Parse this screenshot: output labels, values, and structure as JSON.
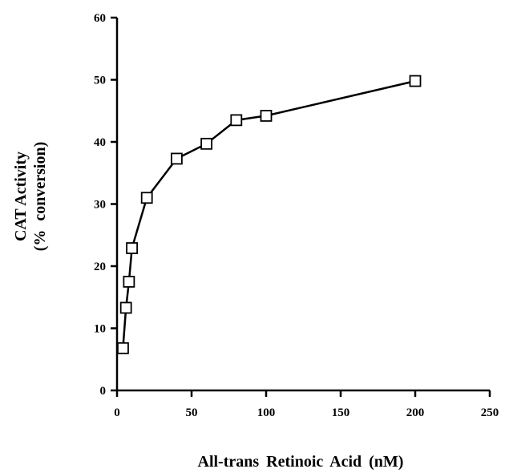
{
  "chart_data": {
    "type": "line",
    "title": "",
    "xlabel": "All-trans Retinoic Acid (nM)",
    "ylabel_lines": [
      "CAT Activity",
      "(% conversion)"
    ],
    "xlim": [
      0,
      250
    ],
    "ylim": [
      0,
      60
    ],
    "xticks": [
      0,
      50,
      100,
      150,
      200,
      250
    ],
    "yticks": [
      0,
      10,
      20,
      30,
      40,
      50,
      60
    ],
    "grid": false,
    "legend": "none",
    "marker": "open-square",
    "line_color": "#000000",
    "series": [
      {
        "x": [
          4,
          6,
          8,
          10,
          20,
          40,
          60,
          80,
          100,
          200
        ],
        "y": [
          6.8,
          13.3,
          17.5,
          22.9,
          31.0,
          37.3,
          39.7,
          43.5,
          44.2,
          49.8
        ]
      }
    ]
  }
}
